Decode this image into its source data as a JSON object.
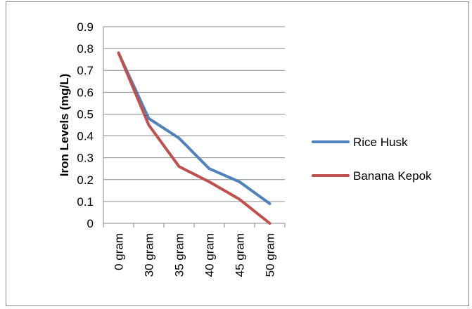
{
  "chart_data": {
    "type": "line",
    "title": "",
    "xlabel": "",
    "ylabel": "Iron Levels (mg/L)",
    "categories": [
      "0 gram",
      "30 gram",
      "35 gram",
      "40 gram",
      "45 gram",
      "50 gram"
    ],
    "ylim": [
      0,
      0.9
    ],
    "yticks": [
      "0",
      "0.1",
      "0.2",
      "0.3",
      "0.4",
      "0.5",
      "0.6",
      "0.7",
      "0.8",
      "0.9"
    ],
    "grid": true,
    "legend_position": "right",
    "series": [
      {
        "name": "Rice Husk",
        "color": "#4F81BD",
        "values": [
          0.78,
          0.48,
          0.39,
          0.25,
          0.19,
          0.09
        ]
      },
      {
        "name": "Banana Kepok",
        "color": "#C0504D",
        "values": [
          0.78,
          0.45,
          0.26,
          0.19,
          0.11,
          0.0
        ]
      }
    ]
  }
}
